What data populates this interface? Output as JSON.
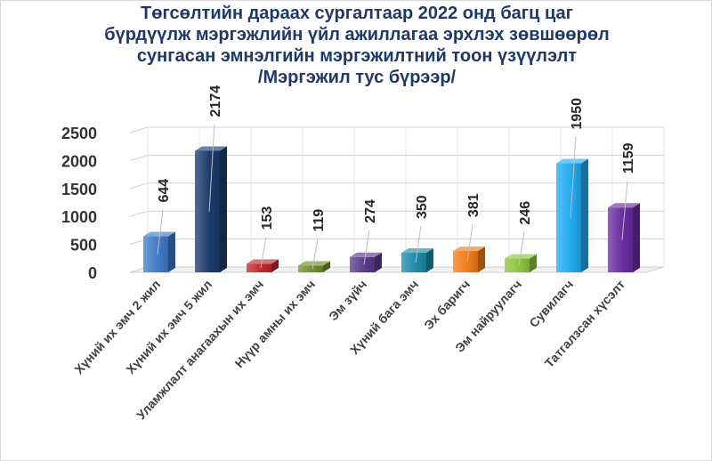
{
  "chart_data": {
    "type": "bar",
    "title": [
      "Төгсөлтийн дараах сургалтаар 2022 онд багц цаг",
      "бүрдүүлж мэргэжлийн үйл ажиллагаа эрхлэх зөвшөөрөл",
      "сунгасан эмнэлгийн мэргэжилтний тоон үзүүлэлт",
      "/Мэргэжил тус бүрээр/"
    ],
    "categories": [
      "Хүний их эмч 2 жил",
      "Хүний их эмч 5 жил",
      "Уламжлалт анагаахын их эмч",
      "Нүүр амны их эмч",
      "Эм зүйч",
      "Хүний бага эмч",
      "Эх баригч",
      "Эм найруулагч",
      "Сувилагч",
      "Татгалзсан хүсэлт"
    ],
    "values": [
      644,
      2174,
      153,
      119,
      274,
      350,
      381,
      246,
      1950,
      1159
    ],
    "data_labels": [
      "644",
      "2174",
      "153",
      "119",
      "274",
      "350",
      "381",
      "246",
      "1950",
      "1159"
    ],
    "ylim": [
      0,
      2500
    ],
    "yticks": [
      0,
      500,
      1000,
      1500,
      2000,
      2500
    ],
    "ytick_labels": [
      "0",
      "500",
      "1000",
      "1500",
      "2000",
      "2500"
    ],
    "grid": true,
    "legend": "none",
    "bar_colors": [
      "#3f7bc8",
      "#1b3a6b",
      "#c0272d",
      "#6e8f2a",
      "#5b3a8a",
      "#1f8aa8",
      "#f07c18",
      "#8cc63f",
      "#22aaf0",
      "#6a2ca0"
    ]
  }
}
